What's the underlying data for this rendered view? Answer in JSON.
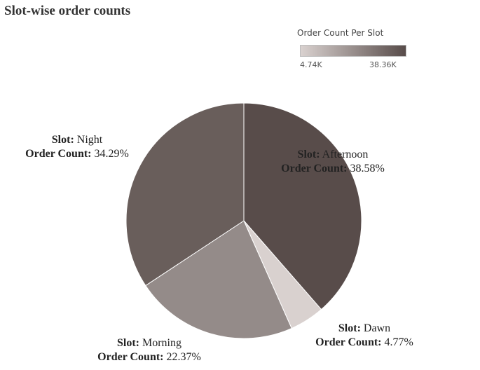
{
  "chart_data": {
    "type": "pie",
    "title": "Slot-wise order counts",
    "legend": {
      "title": "Order Count Per Slot",
      "min_label": "4.74K",
      "max_label": "38.36K",
      "min_color": "#d9d1cf",
      "max_color": "#584c4a",
      "placement": "top-right"
    },
    "field_label": "Slot:",
    "measure_label": "Order Count:",
    "slices": [
      {
        "slot": "Afternoon",
        "percent_label": "38.58%",
        "value": 38.58,
        "color": "#584c4a"
      },
      {
        "slot": "Dawn",
        "percent_label": "4.77%",
        "value": 4.77,
        "color": "#d9d1cf"
      },
      {
        "slot": "Morning",
        "percent_label": "22.37%",
        "value": 22.37,
        "color": "#948b89"
      },
      {
        "slot": "Night",
        "percent_label": "34.29%",
        "value": 34.29,
        "color": "#695e5b"
      }
    ]
  }
}
